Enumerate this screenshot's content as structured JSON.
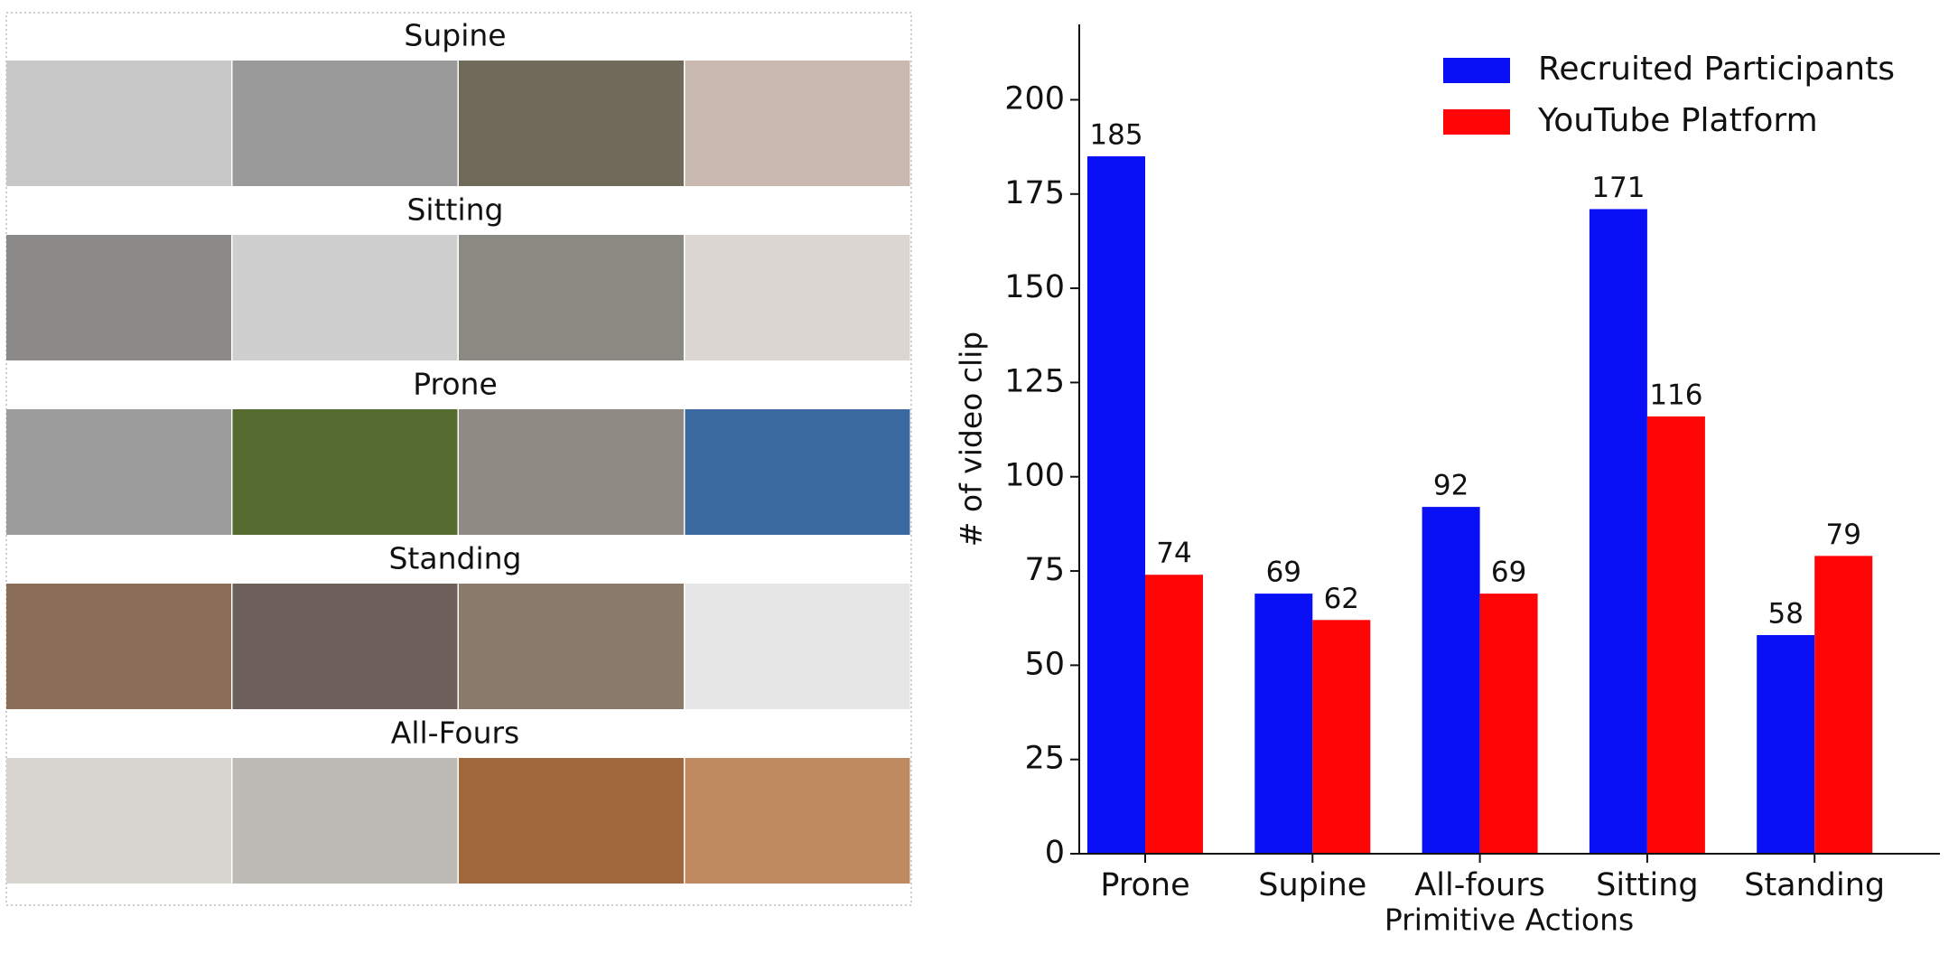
{
  "image_grid": {
    "rows": [
      "Supine",
      "Sitting",
      "Prone",
      "Standing",
      "All-Fours"
    ]
  },
  "chart_data": {
    "type": "bar",
    "categories": [
      "Prone",
      "Supine",
      "All-fours",
      "Sitting",
      "Standing"
    ],
    "series": [
      {
        "name": "Recruited Participants",
        "color": "#0a10f5",
        "values": [
          185,
          69,
          92,
          171,
          58
        ]
      },
      {
        "name": "YouTube Platform",
        "color": "#ff0606",
        "values": [
          74,
          62,
          69,
          116,
          79
        ]
      }
    ],
    "xlabel": "Primitive Actions",
    "ylabel": "# of video clip",
    "ylim": [
      0,
      220
    ],
    "yticks": [
      0,
      25,
      50,
      75,
      100,
      125,
      150,
      175,
      200
    ],
    "grid": false,
    "legend": "upper right"
  }
}
